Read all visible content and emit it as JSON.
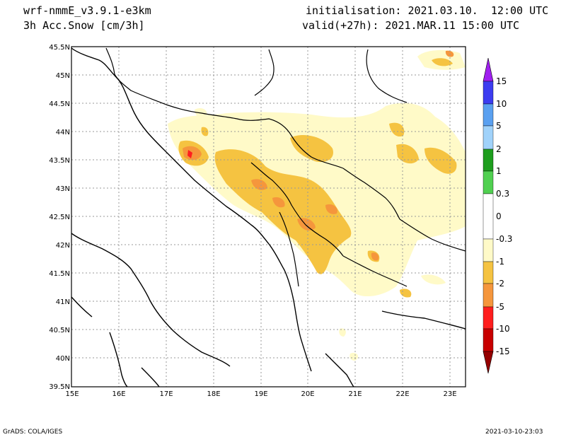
{
  "header": {
    "model": "wrf-nmmE_v3.9.1-e3km",
    "field": "3h Acc.Snow [cm/3h]",
    "init": "initialisation: 2021.03.10.  12:00 UTC",
    "valid": "valid(+27h): 2021.MAR.11 15:00 UTC"
  },
  "map": {
    "lat_labels": [
      "45.5N",
      "45N",
      "44.5N",
      "44N",
      "43.5N",
      "43N",
      "42.5N",
      "42N",
      "41.5N",
      "41N",
      "40.5N",
      "40N",
      "39.5N"
    ],
    "lon_labels": [
      "15E",
      "16E",
      "17E",
      "18E",
      "19E",
      "20E",
      "21E",
      "22E",
      "23E"
    ],
    "extent": {
      "lon_min": 15,
      "lon_max": 23.3,
      "lat_min": 39.5,
      "lat_max": 45.5
    }
  },
  "colorbar": {
    "labels": [
      "15",
      "10",
      "5",
      "2",
      "1",
      "0.3",
      "0",
      "-0.3",
      "-1",
      "-2",
      "-5",
      "-10",
      "-15"
    ],
    "colors": [
      "#a020f0",
      "#3c3cf0",
      "#5aa0f0",
      "#a0d2fa",
      "#1e9e1e",
      "#50d050",
      "#96f596",
      "#ffffff",
      "#fffac8",
      "#f5c341",
      "#f5963c",
      "#ff1e1e",
      "#c80000",
      "#960000"
    ]
  },
  "footer": {
    "left": "GrADS: COLA/IGES",
    "right": "2021-03-10-23:03"
  }
}
